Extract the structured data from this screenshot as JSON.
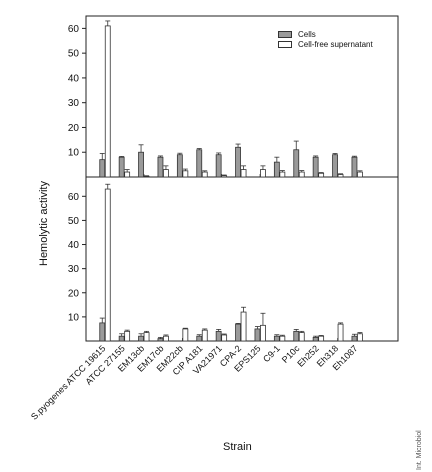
{
  "chart_data": {
    "type": "bar",
    "ylabel": "Hemolytic activity",
    "xlabel": "Strain",
    "legend_position": "top-right",
    "colors": {
      "Cells": "#9a9a9a",
      "Cell-free supernatant": "#ffffff"
    },
    "categories": [
      "S.pyogenes ATCC 19615",
      "ATCC 27155",
      "EM13cb",
      "EM17cb",
      "EM22cb",
      "CIP A181",
      "VA21971",
      "CPA-2",
      "EPS125",
      "C9-1",
      "P10c",
      "Eh252",
      "Eh318",
      "Eh1087"
    ],
    "panels": [
      {
        "ylim": [
          0,
          65
        ],
        "yticks": [
          10,
          20,
          30,
          40,
          50,
          60
        ],
        "series": [
          {
            "name": "Cells",
            "values": [
              7,
              8,
              10,
              8,
              9,
              11,
              9,
              12,
              0,
              6,
              11,
              8,
              9,
              8
            ],
            "errors": [
              2.5,
              0.3,
              3,
              0.5,
              0.6,
              0.5,
              0.7,
              1.3,
              0,
              2,
              3.5,
              0.5,
              0.5,
              0.4
            ]
          },
          {
            "name": "Cell-free supernatant",
            "values": [
              61,
              2,
              0.3,
              3,
              2.5,
              2,
              0.5,
              3,
              3,
              2,
              2,
              1.5,
              1,
              2
            ],
            "errors": [
              2,
              1,
              0.2,
              1.5,
              0.7,
              0.5,
              0.3,
              1.5,
              1.5,
              0.6,
              0.6,
              0.3,
              0.3,
              0.5
            ]
          }
        ]
      },
      {
        "ylim": [
          0,
          68
        ],
        "yticks": [
          10,
          20,
          30,
          40,
          50,
          60
        ],
        "series": [
          {
            "name": "Cells",
            "values": [
              7.5,
              2,
              2,
              1,
              0,
              2,
              4,
              7,
              5,
              2,
              4,
              1.5,
              0,
              2
            ],
            "errors": [
              2,
              1,
              1,
              0.5,
              0,
              0.6,
              0.8,
              0.3,
              1,
              0.6,
              0.8,
              0.5,
              0,
              0.8
            ]
          },
          {
            "name": "Cell-free supernatant",
            "values": [
              63,
              4,
              3.5,
              2,
              5,
              4.5,
              2.5,
              12,
              6.5,
              2,
              3.5,
              2,
              7,
              3
            ],
            "errors": [
              2,
              0.5,
              0.5,
              0.5,
              0.3,
              0.5,
              0.4,
              2,
              5,
              0.4,
              0.5,
              0.3,
              0.5,
              0.5
            ]
          }
        ]
      }
    ]
  },
  "legend": {
    "cells_label": "Cells",
    "supernatant_label": "Cell-free supernatant"
  },
  "watermark": "Int. Microbiol"
}
